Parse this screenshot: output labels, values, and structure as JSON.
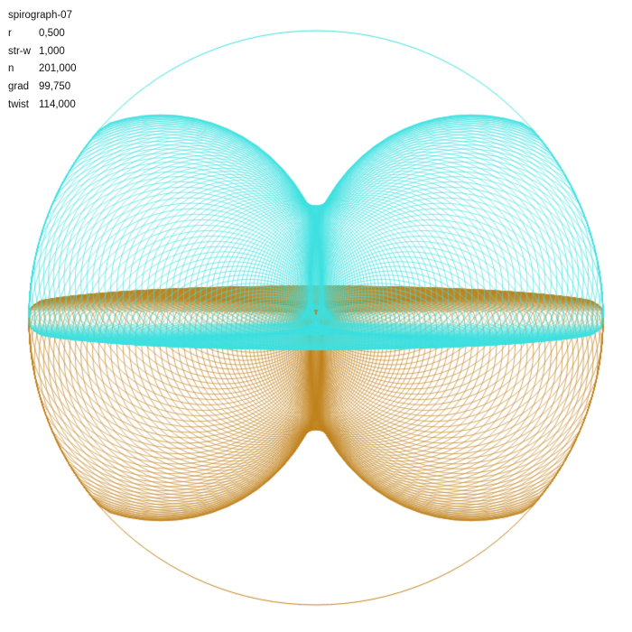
{
  "title": "spirograph-07",
  "params": [
    {
      "label": "r",
      "value": "0,500"
    },
    {
      "label": "str-w",
      "value": "1,000"
    },
    {
      "label": "n",
      "value": "201,000"
    },
    {
      "label": "grad",
      "value": "99,750"
    },
    {
      "label": "twist",
      "value": "114,000"
    }
  ],
  "colors": {
    "background": "#ffffff",
    "top_stroke": "#3ee0e0",
    "bottom_stroke": "#c0821e",
    "text": "#111111"
  }
}
